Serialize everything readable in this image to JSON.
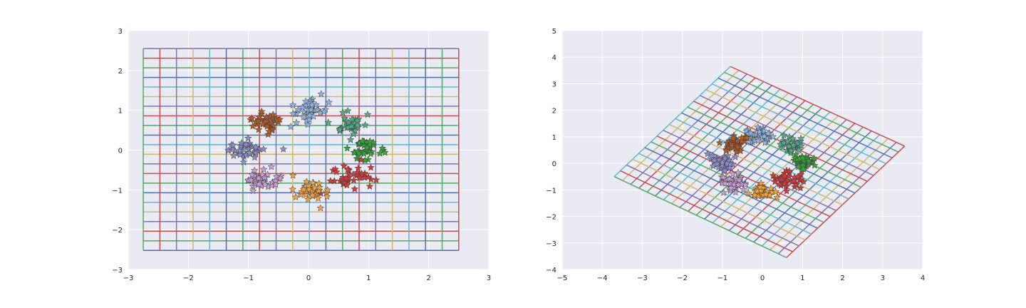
{
  "figure": {
    "background": "#ffffff",
    "axes_facecolor": "#eaeaf2",
    "grid_color": "#ffffff",
    "palette": [
      "#4c72b0",
      "#55a868",
      "#c44e52",
      "#8172b2",
      "#ccb974",
      "#64b5cd"
    ]
  },
  "chart_data": [
    {
      "type": "scatter",
      "title": "",
      "xlabel": "",
      "ylabel": "",
      "xlim": [
        -3,
        3
      ],
      "ylim": [
        -3,
        3
      ],
      "xticks": [
        -3,
        -2,
        -1,
        0,
        1,
        2,
        3
      ],
      "yticks": [
        -3,
        -2,
        -1,
        0,
        1,
        2,
        3
      ],
      "tick_labels_x": [
        "−3",
        "−2",
        "−1",
        "0",
        "1",
        "2",
        "3"
      ],
      "tick_labels_y": [
        "−3",
        "−2",
        "−1",
        "0",
        "1",
        "2",
        "3"
      ],
      "grid": true,
      "marker": "star",
      "overlay_grid": {
        "type": "rectangular-mesh",
        "x_range": [
          -2.75,
          2.5
        ],
        "y_range": [
          -2.52,
          2.55
        ],
        "n_vertical": 20,
        "n_horizontal": 22,
        "line_colors": [
          "#4c72b0",
          "#55a868",
          "#c44e52",
          "#8172b2",
          "#ccb974",
          "#64b5cd"
        ]
      },
      "clusters": [
        {
          "color": "#8fb3e0",
          "center": [
            0.0,
            1.02
          ],
          "spread": 0.16,
          "count": 40
        },
        {
          "color": "#58a88a",
          "center": [
            0.72,
            0.68
          ],
          "spread": 0.13,
          "count": 35
        },
        {
          "color": "#37a53c",
          "center": [
            0.98,
            0.02
          ],
          "spread": 0.13,
          "count": 40
        },
        {
          "color": "#d43a3a",
          "center": [
            0.68,
            -0.68
          ],
          "spread": 0.16,
          "count": 40
        },
        {
          "color": "#f1a340",
          "center": [
            0.02,
            -1.02
          ],
          "spread": 0.14,
          "count": 40
        },
        {
          "color": "#c9a0d6",
          "center": [
            -0.78,
            -0.72
          ],
          "spread": 0.15,
          "count": 40
        },
        {
          "color": "#8c8cc8",
          "center": [
            -1.0,
            0.02
          ],
          "spread": 0.14,
          "count": 40
        },
        {
          "color": "#b25a2a",
          "center": [
            -0.7,
            0.7
          ],
          "spread": 0.13,
          "count": 40
        }
      ]
    },
    {
      "type": "scatter",
      "title": "",
      "xlabel": "",
      "ylabel": "",
      "xlim": [
        -5,
        4
      ],
      "ylim": [
        -4,
        5
      ],
      "xticks": [
        -5,
        -4,
        -3,
        -2,
        -1,
        0,
        1,
        2,
        3,
        4
      ],
      "yticks": [
        -4,
        -3,
        -2,
        -1,
        0,
        1,
        2,
        3,
        4,
        5
      ],
      "tick_labels_x": [
        "−5",
        "−4",
        "−3",
        "−2",
        "−1",
        "0",
        "1",
        "2",
        "3",
        "4"
      ],
      "tick_labels_y": [
        "−4",
        "−3",
        "−2",
        "−1",
        "0",
        "1",
        "2",
        "3",
        "4",
        "5"
      ],
      "grid": true,
      "marker": "star",
      "overlay_grid": {
        "type": "skewed-mesh",
        "corners": {
          "bottom": [
            0.6,
            -3.55
          ],
          "left": [
            -3.7,
            -0.5
          ],
          "top": [
            -0.8,
            3.65
          ],
          "right": [
            3.55,
            0.65
          ]
        },
        "n_vertical": 20,
        "n_horizontal": 22,
        "line_colors": [
          "#4c72b0",
          "#55a868",
          "#c44e52",
          "#8172b2",
          "#ccb974",
          "#64b5cd"
        ]
      },
      "clusters": [
        {
          "color": "#8fb3e0",
          "center": [
            -0.05,
            1.05
          ],
          "spread": 0.17,
          "count": 40
        },
        {
          "color": "#58a88a",
          "center": [
            0.7,
            0.65
          ],
          "spread": 0.14,
          "count": 35
        },
        {
          "color": "#37a53c",
          "center": [
            1.05,
            0.0
          ],
          "spread": 0.14,
          "count": 40
        },
        {
          "color": "#d43a3a",
          "center": [
            0.65,
            -0.65
          ],
          "spread": 0.17,
          "count": 40
        },
        {
          "color": "#f1a340",
          "center": [
            0.0,
            -1.05
          ],
          "spread": 0.15,
          "count": 40
        },
        {
          "color": "#c9a0d6",
          "center": [
            -0.7,
            -0.75
          ],
          "spread": 0.16,
          "count": 40
        },
        {
          "color": "#8c8cc8",
          "center": [
            -1.05,
            0.0
          ],
          "spread": 0.15,
          "count": 40
        },
        {
          "color": "#b25a2a",
          "center": [
            -0.7,
            0.7
          ],
          "spread": 0.14,
          "count": 40
        }
      ]
    }
  ]
}
